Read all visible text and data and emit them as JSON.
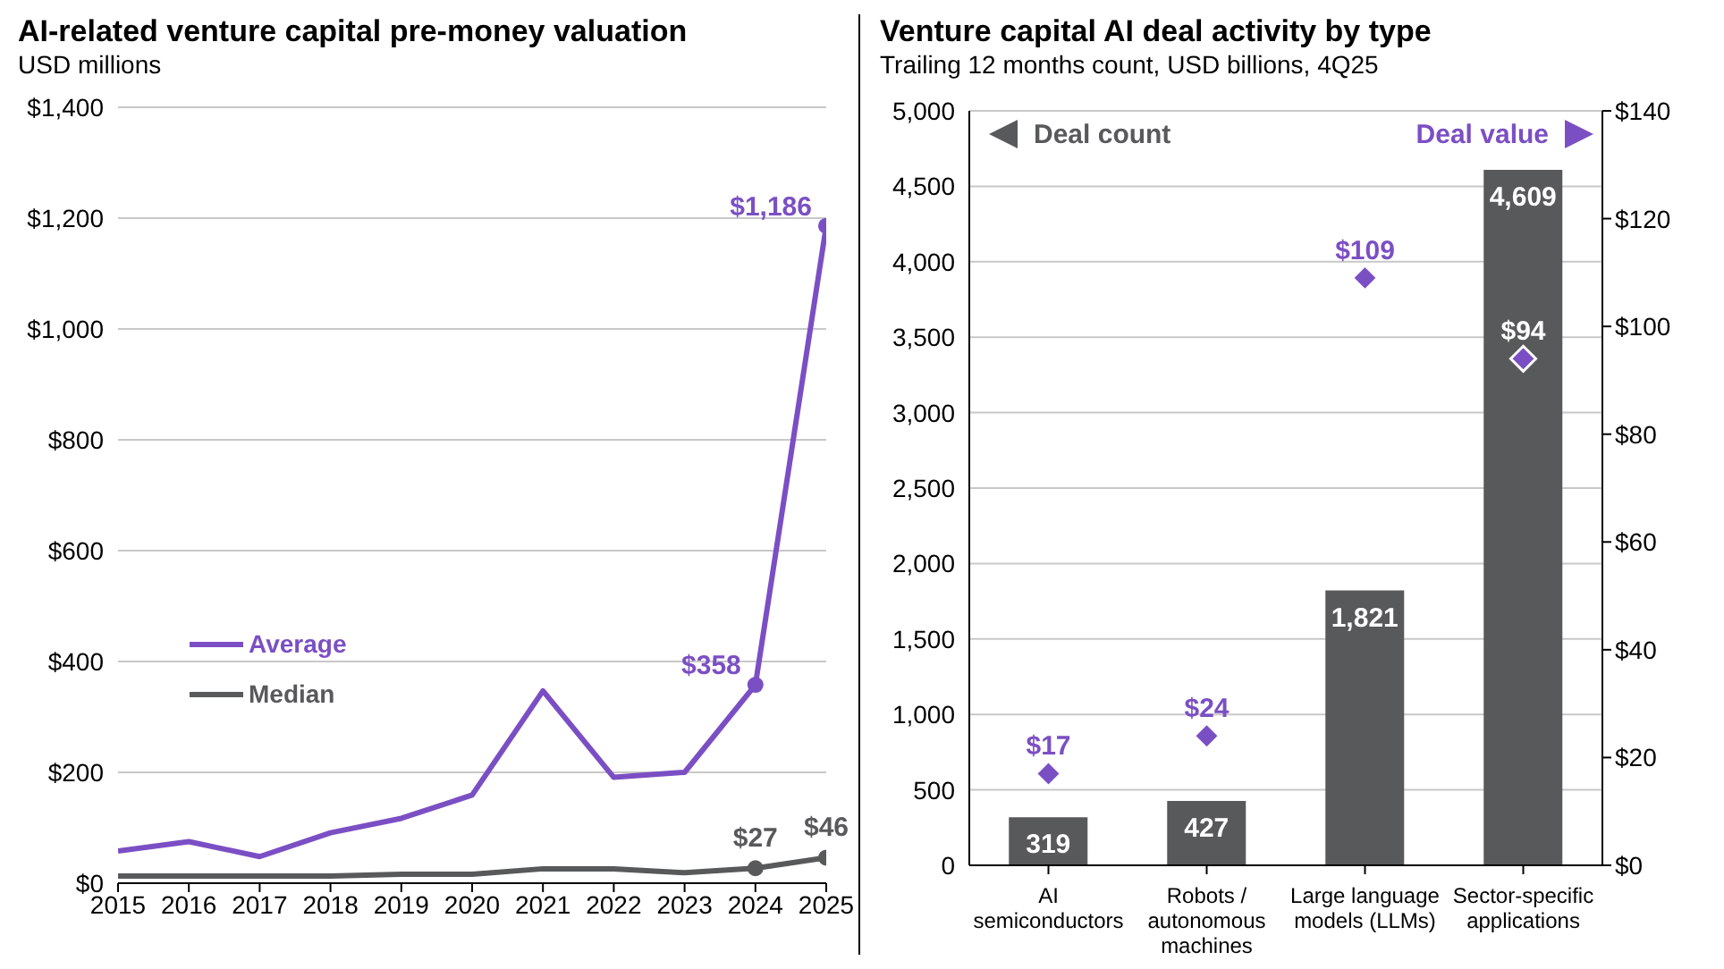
{
  "chart_data": [
    {
      "type": "line",
      "title": "AI-related venture capital pre-money valuation",
      "subtitle": "USD millions",
      "x": [
        2015,
        2016,
        2017,
        2018,
        2019,
        2020,
        2021,
        2022,
        2023,
        2024,
        2025
      ],
      "xlim": [
        2015,
        2025
      ],
      "xticks": [
        2015,
        2016,
        2017,
        2018,
        2019,
        2020,
        2021,
        2022,
        2023,
        2024,
        2025
      ],
      "ylim": [
        0,
        1400
      ],
      "yticks": [
        {
          "value": 0,
          "label": "$0"
        },
        {
          "value": 200,
          "label": "$200"
        },
        {
          "value": 400,
          "label": "$400"
        },
        {
          "value": 600,
          "label": "$600"
        },
        {
          "value": 800,
          "label": "$800"
        },
        {
          "value": 1000,
          "label": "$1,000"
        },
        {
          "value": 1200,
          "label": "$1,200"
        },
        {
          "value": 1400,
          "label": "$1,400"
        }
      ],
      "grid": "y",
      "legend": "left",
      "series": [
        {
          "name": "Average",
          "color": "#7b4fc4",
          "values": [
            58,
            75,
            48,
            91,
            117,
            159,
            347,
            191,
            200,
            358,
            1186
          ],
          "value_labels": [
            null,
            null,
            null,
            null,
            null,
            null,
            null,
            null,
            null,
            "$358",
            "$1,186"
          ]
        },
        {
          "name": "Median",
          "color": "#58595b",
          "values": [
            13,
            13,
            13,
            13,
            16,
            16,
            26,
            26,
            19,
            27,
            46
          ],
          "value_labels": [
            null,
            null,
            null,
            null,
            null,
            null,
            null,
            null,
            null,
            "$27",
            "$46"
          ]
        }
      ]
    },
    {
      "type": "bar",
      "title": "Venture capital AI deal activity by type",
      "subtitle": "Trailing 12 months count, USD billions, 4Q25",
      "categories": [
        "AI semiconductors",
        "Robots / autonomous machines",
        "Large language models (LLMs)",
        "Sector-specific applications"
      ],
      "ylim": [
        0,
        5000
      ],
      "yticks": [
        0,
        500,
        {
          "value": 1000,
          "label": "1,000"
        },
        {
          "value": 1500,
          "label": "1,500"
        },
        {
          "value": 2000,
          "label": "2,000"
        },
        {
          "value": 2500,
          "label": "2,500"
        },
        {
          "value": 3000,
          "label": "3,000"
        },
        {
          "value": 3500,
          "label": "3,500"
        },
        {
          "value": 4000,
          "label": "4,000"
        },
        {
          "value": 4500,
          "label": "4,500"
        },
        {
          "value": 5000,
          "label": "5,000"
        }
      ],
      "y2lim": [
        0,
        140
      ],
      "y2ticks": [
        {
          "value": 0,
          "label": "$0"
        },
        {
          "value": 20,
          "label": "$20"
        },
        {
          "value": 40,
          "label": "$40"
        },
        {
          "value": 60,
          "label": "$60"
        },
        {
          "value": 80,
          "label": "$80"
        },
        {
          "value": 100,
          "label": "$100"
        },
        {
          "value": 120,
          "label": "$120"
        },
        {
          "value": 140,
          "label": "$140"
        }
      ],
      "grid": "y",
      "legend": "top",
      "marker": "diamond",
      "series": [
        {
          "name": "Deal count",
          "color": "#58595b",
          "values": [
            319,
            427,
            1821,
            4609
          ],
          "value_labels": [
            "319",
            "427",
            "1,821",
            "4,609"
          ]
        },
        {
          "name": "Deal value",
          "type": "scatter",
          "axis": "y2",
          "color": "#7b4fc4",
          "values": [
            17,
            24,
            109,
            94
          ],
          "value_labels": [
            "$17",
            "$24",
            "$109",
            "$94"
          ]
        }
      ]
    }
  ]
}
